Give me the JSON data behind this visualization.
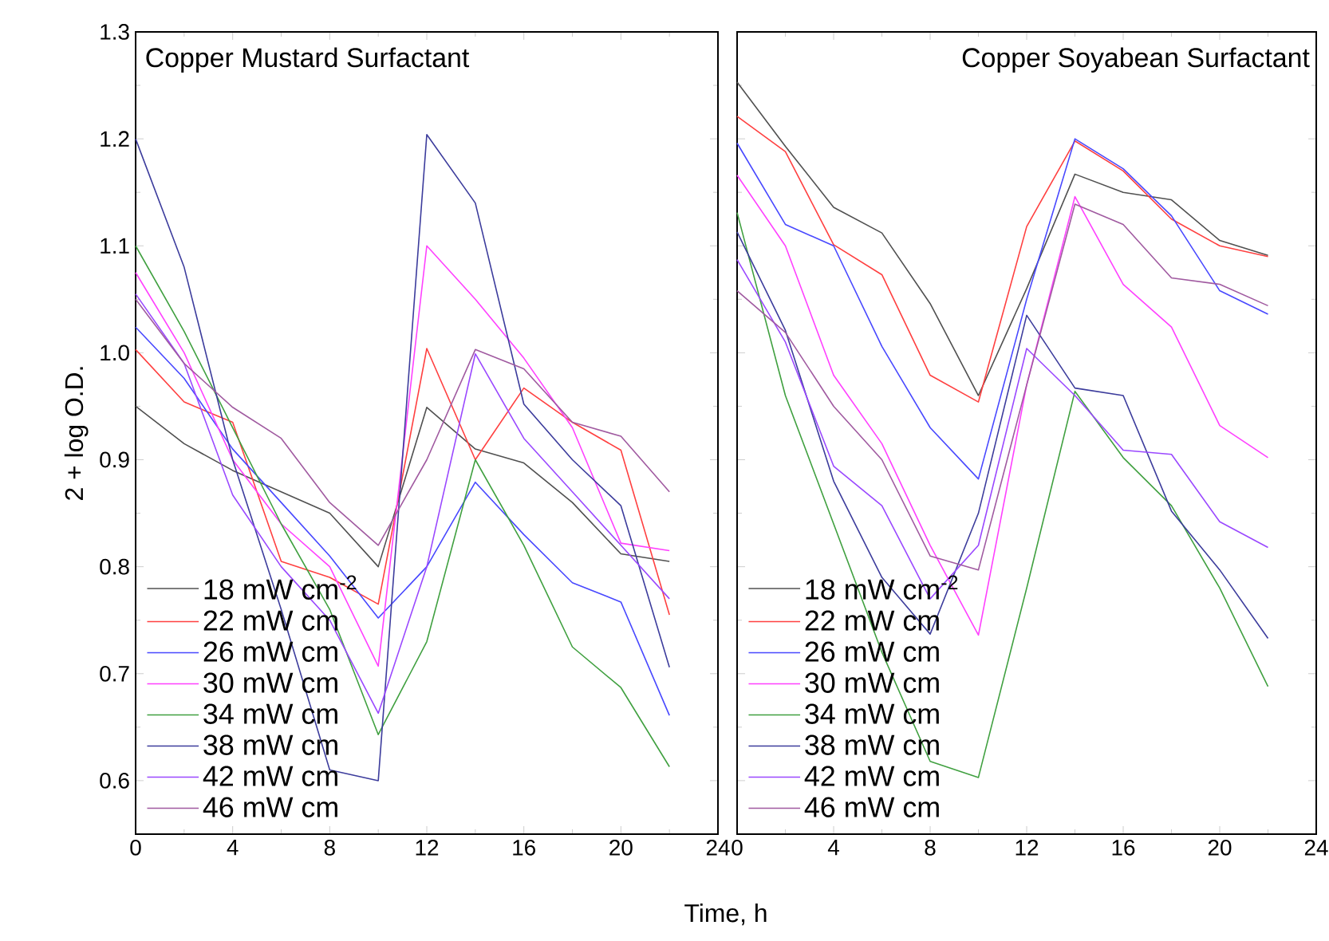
{
  "chart_data": [
    {
      "type": "line",
      "title": "Copper Mustard Surfactant",
      "xlabel": "Time, h",
      "ylabel": "2 + log O.D.",
      "x": [
        0,
        2,
        4,
        6,
        8,
        10,
        12,
        14,
        16,
        18,
        20,
        22
      ],
      "xlim": [
        0,
        24
      ],
      "ylim": [
        0.55,
        1.3
      ],
      "xticks": [
        0,
        4,
        8,
        12,
        16,
        20,
        24
      ],
      "yticks": [
        0.6,
        0.7,
        0.8,
        0.9,
        {
          "value": 1.0,
          "label": "1.0"
        },
        1.1,
        1.2,
        1.3
      ],
      "legend": "bottom left",
      "series": [
        {
          "name": "18 mW cm$^{-2}$",
          "color": "#505050",
          "values": [
            0.95,
            0.915,
            0.89,
            0.87,
            0.85,
            0.8,
            0.949,
            0.91,
            0.897,
            0.86,
            0.812,
            0.805
          ]
        },
        {
          "name": "22 mW cm",
          "color": "#ff4040",
          "values": [
            1.003,
            0.954,
            0.935,
            0.805,
            0.79,
            0.765,
            1.004,
            0.9,
            0.967,
            0.935,
            0.909,
            0.755
          ]
        },
        {
          "name": "26 mW cm",
          "color": "#4848ff",
          "values": [
            1.024,
            0.976,
            0.91,
            0.86,
            0.81,
            0.752,
            0.8,
            0.879,
            0.83,
            0.785,
            0.767,
            0.661
          ]
        },
        {
          "name": "30 mW cm",
          "color": "#ff40ff",
          "values": [
            1.075,
            1.0,
            0.9,
            0.84,
            0.8,
            0.707,
            1.1,
            1.05,
            0.995,
            0.93,
            0.822,
            0.815
          ]
        },
        {
          "name": "34 mW cm",
          "color": "#40a040",
          "values": [
            1.1,
            1.02,
            0.93,
            0.84,
            0.76,
            0.643,
            0.73,
            0.9,
            0.82,
            0.725,
            0.687,
            0.613
          ]
        },
        {
          "name": "38 mW cm",
          "color": "#3c3c9c",
          "values": [
            1.2,
            1.08,
            0.9,
            0.76,
            0.61,
            0.6,
            1.204,
            1.14,
            0.952,
            0.9,
            0.857,
            0.706
          ]
        },
        {
          "name": "42 mW cm",
          "color": "#9a48ff",
          "values": [
            1.055,
            0.99,
            0.867,
            0.8,
            0.75,
            0.663,
            0.8,
            0.999,
            0.92,
            0.87,
            0.82,
            0.77
          ]
        },
        {
          "name": "46 mW cm",
          "color": "#a05aa0",
          "values": [
            1.05,
            0.99,
            0.949,
            0.92,
            0.86,
            0.82,
            0.9,
            1.003,
            0.985,
            0.935,
            0.922,
            0.87
          ]
        }
      ]
    },
    {
      "type": "line",
      "title": "Copper Soyabean Surfactant",
      "x": [
        0,
        2,
        4,
        6,
        8,
        10,
        12,
        14,
        16,
        18,
        20,
        22
      ],
      "xlim": [
        0,
        24
      ],
      "ylim": [
        0.55,
        1.3
      ],
      "xticks": [
        0,
        4,
        8,
        12,
        16,
        20,
        24
      ],
      "yticks": [
        0.6,
        0.7,
        0.8,
        0.9,
        1.0,
        1.1,
        1.2,
        1.3
      ],
      "legend": "bottom left",
      "tick_labels": "x",
      "series": [
        {
          "name": "18 mW cm$^{-2}$",
          "color": "#505050",
          "values": [
            1.253,
            1.193,
            1.136,
            1.112,
            1.046,
            0.96,
            1.06,
            1.167,
            1.15,
            1.143,
            1.105,
            1.091
          ]
        },
        {
          "name": "22 mW cm",
          "color": "#ff4040",
          "values": [
            1.221,
            1.188,
            1.101,
            1.073,
            0.979,
            0.954,
            1.118,
            1.198,
            1.17,
            1.125,
            1.1,
            1.09
          ]
        },
        {
          "name": "26 mW cm",
          "color": "#4848ff",
          "values": [
            1.196,
            1.12,
            1.1,
            1.006,
            0.93,
            0.882,
            1.05,
            1.2,
            1.172,
            1.128,
            1.058,
            1.036
          ]
        },
        {
          "name": "30 mW cm",
          "color": "#ff40ff",
          "values": [
            1.166,
            1.1,
            0.979,
            0.915,
            0.82,
            0.736,
            0.97,
            1.146,
            1.064,
            1.024,
            0.932,
            0.902
          ]
        },
        {
          "name": "34 mW cm",
          "color": "#40a040",
          "values": [
            1.131,
            0.96,
            0.84,
            0.72,
            0.618,
            0.603,
            0.78,
            0.964,
            0.902,
            0.857,
            0.78,
            0.688
          ]
        },
        {
          "name": "38 mW cm",
          "color": "#3c3c9c",
          "values": [
            1.113,
            1.021,
            0.88,
            0.79,
            0.737,
            0.85,
            1.035,
            0.967,
            0.96,
            0.852,
            0.797,
            0.733
          ]
        },
        {
          "name": "42 mW cm",
          "color": "#9a48ff",
          "values": [
            1.087,
            1.01,
            0.894,
            0.857,
            0.77,
            0.82,
            1.004,
            0.96,
            0.909,
            0.905,
            0.842,
            0.818
          ]
        },
        {
          "name": "46 mW cm",
          "color": "#a05aa0",
          "values": [
            1.058,
            1.019,
            0.95,
            0.9,
            0.81,
            0.797,
            0.97,
            1.139,
            1.12,
            1.07,
            1.064,
            1.044
          ]
        }
      ]
    }
  ]
}
